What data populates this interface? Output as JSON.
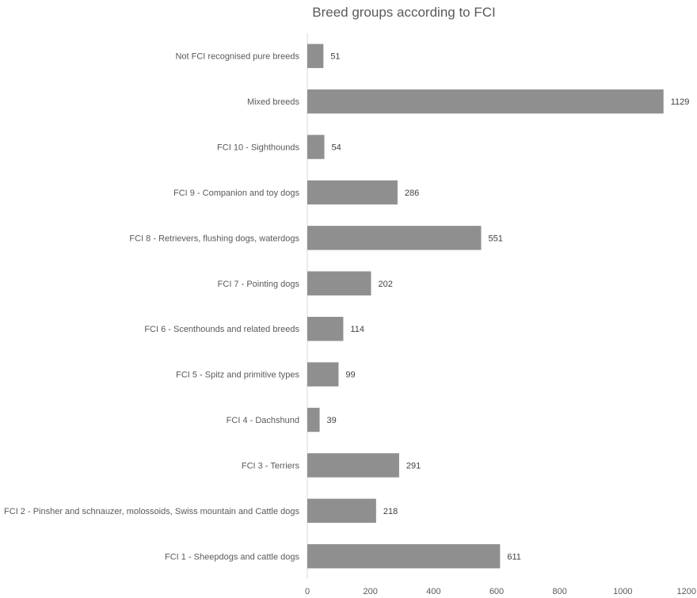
{
  "chart_data": {
    "type": "bar",
    "orientation": "horizontal",
    "title": "Breed groups according to FCI",
    "xlabel": "",
    "ylabel": "",
    "categories": [
      "Not FCI recognised pure breeds",
      "Mixed breeds",
      "FCI 10 - Sighthounds",
      "FCI 9 - Companion and toy dogs",
      "FCI 8 - Retrievers, flushing dogs, waterdogs",
      "FCI 7 - Pointing dogs",
      "FCI 6 - Scenthounds and related breeds",
      "FCI 5 - Spitz and primitive types",
      "FCI 4 - Dachshund",
      "FCI 3 - Terriers",
      "FCI 2 - Pinsher and schnauzer, molossoids, Swiss mountain and Cattle dogs",
      "FCI 1 - Sheepdogs and cattle dogs"
    ],
    "values": [
      51,
      1129,
      54,
      286,
      551,
      202,
      114,
      99,
      39,
      291,
      218,
      611
    ],
    "xlim": [
      0,
      1200
    ],
    "x_ticks": [
      0,
      200,
      400,
      600,
      800,
      1000,
      1200
    ],
    "grid": false,
    "legend": "none",
    "bar_color": "#8f8f8f",
    "axis_color": "#d9d9d9"
  }
}
